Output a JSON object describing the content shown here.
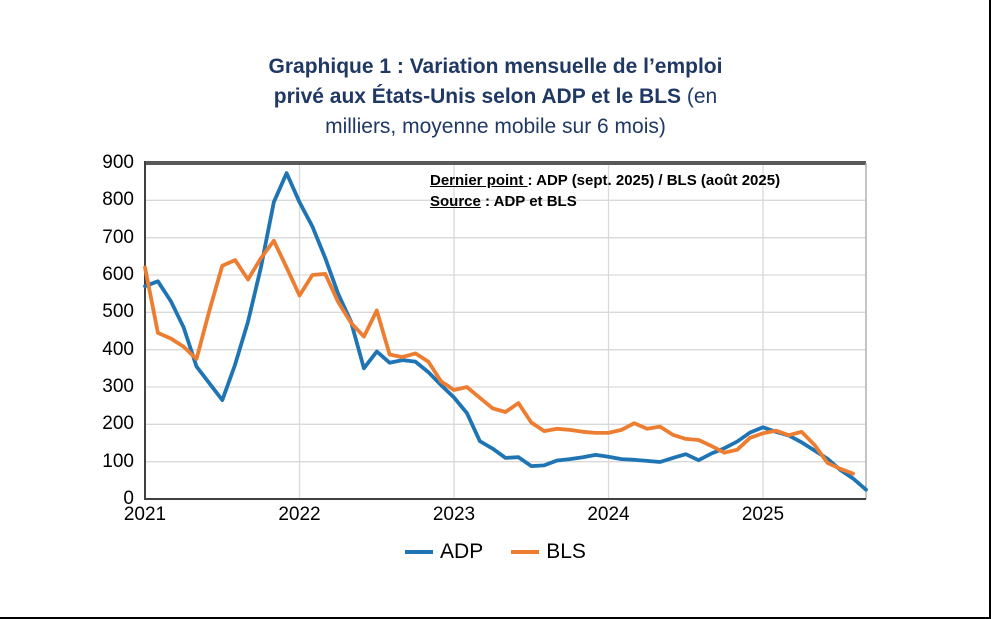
{
  "title": {
    "lines": [
      {
        "bold": "Graphique 1 : Variation mensuelle de l’emploi",
        "regular": ""
      },
      {
        "bold": "privé aux États-Unis selon ADP et le BLS",
        "regular": " (en"
      },
      {
        "bold": "",
        "regular": "milliers, moyenne mobile sur 6 mois)"
      }
    ]
  },
  "annotation": {
    "line1_label": "Dernier point ",
    "line1_rest": ": ADP (sept. 2025) / BLS (août 2025)",
    "line2_label": "Source",
    "line2_rest": " : ADP et BLS"
  },
  "colors": {
    "adp": "#1F74B4",
    "bls": "#ED7D31",
    "title": "#1F3864",
    "grid": "#D9D9D9",
    "axis": "#595959",
    "axis_dark": "#404040",
    "right_border": "#A6A6A6",
    "text": "#000000"
  },
  "chart_data": {
    "type": "line",
    "title": "Graphique 1 : Variation mensuelle de l’emploi privé aux États-Unis selon ADP et le BLS (en milliers, moyenne mobile sur 6 mois)",
    "xlabel": "",
    "ylabel": "",
    "x_unit": "month",
    "x_start": "2021-01",
    "ylim": [
      0,
      900
    ],
    "grid": true,
    "legend_position": "bottom",
    "y_ticks": [
      0,
      100,
      200,
      300,
      400,
      500,
      600,
      700,
      800,
      900
    ],
    "x_ticks": [
      {
        "label": "2021",
        "month_index": 0
      },
      {
        "label": "2022",
        "month_index": 12
      },
      {
        "label": "2023",
        "month_index": 24
      },
      {
        "label": "2024",
        "month_index": 36
      },
      {
        "label": "2025",
        "month_index": 48
      }
    ],
    "series": [
      {
        "name": "ADP",
        "color": "#1F74B4",
        "last_point": "sept. 2025",
        "values": [
          570,
          583,
          530,
          460,
          355,
          310,
          265,
          360,
          475,
          620,
          795,
          873,
          795,
          730,
          645,
          550,
          475,
          350,
          395,
          365,
          372,
          368,
          340,
          305,
          272,
          230,
          155,
          135,
          110,
          112,
          88,
          90,
          103,
          107,
          112,
          118,
          113,
          107,
          105,
          102,
          99,
          110,
          120,
          104,
          122,
          136,
          154,
          178,
          192,
          180,
          170,
          152,
          130,
          108,
          78,
          55,
          25
        ]
      },
      {
        "name": "BLS",
        "color": "#ED7D31",
        "last_point": "août 2025",
        "values": [
          620,
          445,
          430,
          408,
          375,
          505,
          625,
          640,
          588,
          645,
          692,
          620,
          545,
          600,
          603,
          528,
          472,
          435,
          505,
          387,
          380,
          390,
          368,
          315,
          292,
          300,
          271,
          243,
          233,
          257,
          205,
          182,
          188,
          185,
          180,
          177,
          177,
          185,
          203,
          188,
          194,
          172,
          161,
          158,
          142,
          124,
          132,
          164,
          176,
          183,
          171,
          180,
          145,
          97,
          81,
          68
        ]
      }
    ]
  }
}
